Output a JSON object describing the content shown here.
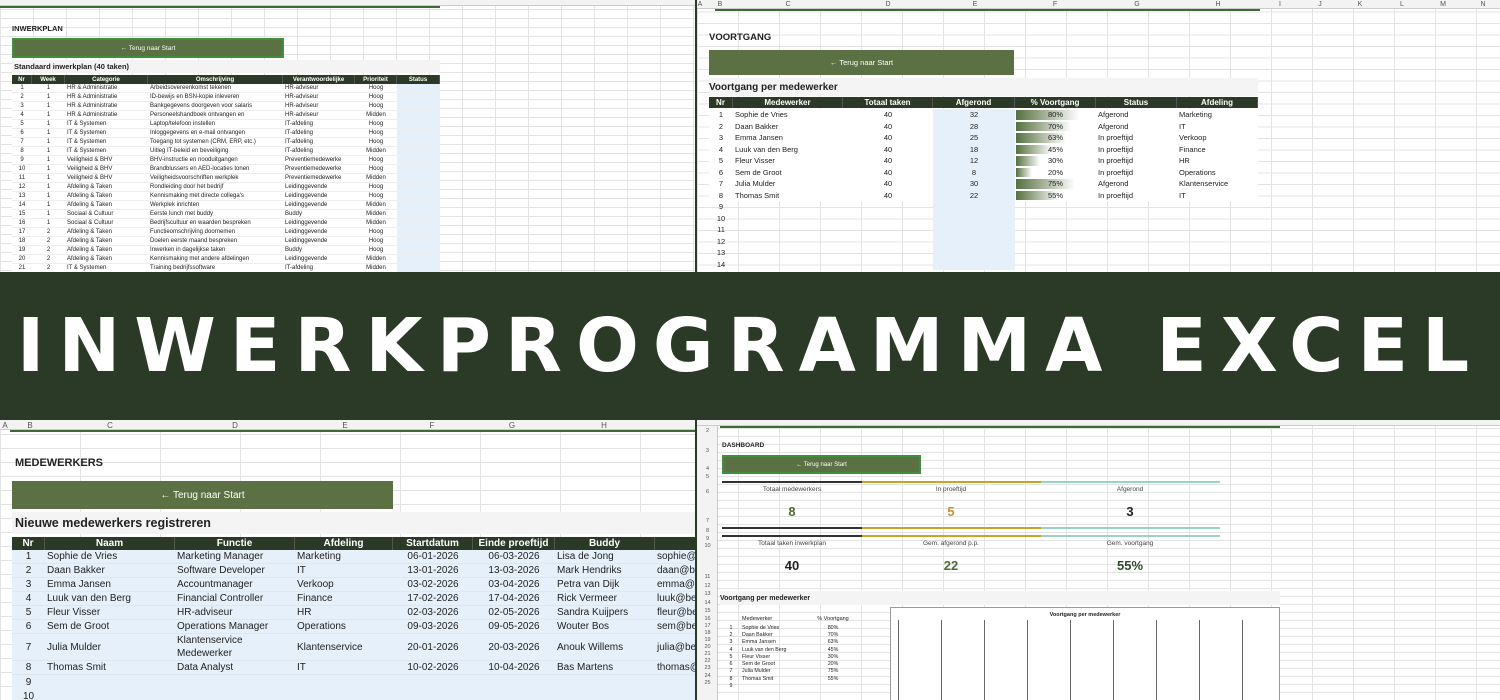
{
  "banner": {
    "title": "INWERKPROGRAMMA EXCEL"
  },
  "inwerkplan": {
    "title": "INWERKPLAN",
    "button": "← Terug naar Start",
    "subtitle": "Standaard inwerkplan (40 taken)",
    "headers": [
      "Nr",
      "Week",
      "Categorie",
      "Omschrijving",
      "Verantwoordelijke",
      "Prioriteit",
      "Status"
    ],
    "rows": [
      [
        1,
        1,
        "HR & Administratie",
        "Arbeidsovereenkomst tekenen",
        "HR-adviseur",
        "Hoog"
      ],
      [
        2,
        1,
        "HR & Administratie",
        "ID-bewijs en BSN-kopie inleveren",
        "HR-adviseur",
        "Hoog"
      ],
      [
        3,
        1,
        "HR & Administratie",
        "Bankgegevens doorgeven voor salaris",
        "HR-adviseur",
        "Hoog"
      ],
      [
        4,
        1,
        "HR & Administratie",
        "Personeelshandboek ontvangen en",
        "HR-adviseur",
        "Midden"
      ],
      [
        5,
        1,
        "IT & Systemen",
        "Laptop/telefoon instellen",
        "IT-afdeling",
        "Hoog"
      ],
      [
        6,
        1,
        "IT & Systemen",
        "Inloggegevens en e-mail ontvangen",
        "IT-afdeling",
        "Hoog"
      ],
      [
        7,
        1,
        "IT & Systemen",
        "Toegang tot systemen (CRM, ERP, etc.)",
        "IT-afdeling",
        "Hoog"
      ],
      [
        8,
        1,
        "IT & Systemen",
        "Uitleg IT-beleid en beveiliging",
        "IT-afdeling",
        "Midden"
      ],
      [
        9,
        1,
        "Veiligheid & BHV",
        "BHV-instructie en nooduitgangen",
        "Preventiemedewerke",
        "Hoog"
      ],
      [
        10,
        1,
        "Veiligheid & BHV",
        "Brandblussers en AED-locaties tonen",
        "Preventiemedewerke",
        "Hoog"
      ],
      [
        11,
        1,
        "Veiligheid & BHV",
        "Veiligheidsvoorschriften werkplek",
        "Preventiemedewerke",
        "Midden"
      ],
      [
        12,
        1,
        "Afdeling & Taken",
        "Rondleiding door het bedrijf",
        "Leidinggevende",
        "Hoog"
      ],
      [
        13,
        1,
        "Afdeling & Taken",
        "Kennismaking met directe collega's",
        "Leidinggevende",
        "Hoog"
      ],
      [
        14,
        1,
        "Afdeling & Taken",
        "Werkplek inrichten",
        "Leidinggevende",
        "Midden"
      ],
      [
        15,
        1,
        "Sociaal & Cultuur",
        "Eerste lunch met buddy",
        "Buddy",
        "Midden"
      ],
      [
        16,
        1,
        "Sociaal & Cultuur",
        "Bedrijfscultuur en waarden bespreken",
        "Leidinggevende",
        "Midden"
      ],
      [
        17,
        2,
        "Afdeling & Taken",
        "Functieomschrijving doornemen",
        "Leidinggevende",
        "Hoog"
      ],
      [
        18,
        2,
        "Afdeling & Taken",
        "Doelen eerste maand bespreken",
        "Leidinggevende",
        "Hoog"
      ],
      [
        19,
        2,
        "Afdeling & Taken",
        "Inwerken in dagelijkse taken",
        "Buddy",
        "Hoog"
      ],
      [
        20,
        2,
        "Afdeling & Taken",
        "Kennismaking met andere afdelingen",
        "Leidinggevende",
        "Midden"
      ],
      [
        21,
        2,
        "IT & Systemen",
        "Training bedrijfssoftware",
        "IT-afdeling",
        "Midden"
      ]
    ]
  },
  "voortgang": {
    "column_letters": [
      "A",
      "B",
      "C",
      "D",
      "E",
      "F",
      "G",
      "H",
      "I",
      "J",
      "K",
      "L",
      "M",
      "N"
    ],
    "title": "VOORTGANG",
    "button": "← Terug naar Start",
    "subtitle": "Voortgang per medewerker",
    "headers": [
      "Nr",
      "Medewerker",
      "Totaal taken",
      "Afgerond",
      "% Voortgang",
      "Status",
      "Afdeling"
    ],
    "rows": [
      {
        "nr": 1,
        "name": "Sophie de Vries",
        "total": 40,
        "done": 32,
        "progress": 80,
        "progress_label": "80%",
        "status": "Afgerond",
        "department": "Marketing"
      },
      {
        "nr": 2,
        "name": "Daan Bakker",
        "total": 40,
        "done": 28,
        "progress": 70,
        "progress_label": "70%",
        "status": "Afgerond",
        "department": "IT"
      },
      {
        "nr": 3,
        "name": "Emma Jansen",
        "total": 40,
        "done": 25,
        "progress": 63,
        "progress_label": "63%",
        "status": "In proeftijd",
        "department": "Verkoop"
      },
      {
        "nr": 4,
        "name": "Luuk van den Berg",
        "total": 40,
        "done": 18,
        "progress": 45,
        "progress_label": "45%",
        "status": "In proeftijd",
        "department": "Finance"
      },
      {
        "nr": 5,
        "name": "Fleur Visser",
        "total": 40,
        "done": 12,
        "progress": 30,
        "progress_label": "30%",
        "status": "In proeftijd",
        "department": "HR"
      },
      {
        "nr": 6,
        "name": "Sem de Groot",
        "total": 40,
        "done": 8,
        "progress": 20,
        "progress_label": "20%",
        "status": "In proeftijd",
        "department": "Operations"
      },
      {
        "nr": 7,
        "name": "Julia Mulder",
        "total": 40,
        "done": 30,
        "progress": 75,
        "progress_label": "75%",
        "status": "Afgerond",
        "department": "Klantenservice"
      },
      {
        "nr": 8,
        "name": "Thomas Smit",
        "total": 40,
        "done": 22,
        "progress": 55,
        "progress_label": "55%",
        "status": "In proeftijd",
        "department": "IT"
      }
    ],
    "empty_rows": [
      9,
      10,
      11,
      12,
      13,
      14
    ]
  },
  "medewerkers": {
    "column_letters": [
      "A",
      "B",
      "C",
      "D",
      "E",
      "F",
      "G",
      "H"
    ],
    "title": "MEDEWERKERS",
    "button": "← Terug naar Start",
    "subtitle": "Nieuwe medewerkers registreren",
    "headers": [
      "Nr",
      "Naam",
      "Functie",
      "Afdeling",
      "Startdatum",
      "Einde proeftijd",
      "Buddy"
    ],
    "rows": [
      [
        1,
        "Sophie de Vries",
        "Marketing Manager",
        "Marketing",
        "06-01-2026",
        "06-03-2026",
        "Lisa de Jong",
        "sophie@"
      ],
      [
        2,
        "Daan Bakker",
        "Software Developer",
        "IT",
        "13-01-2026",
        "13-03-2026",
        "Mark Hendriks",
        "daan@be"
      ],
      [
        3,
        "Emma Jansen",
        "Accountmanager",
        "Verkoop",
        "03-02-2026",
        "03-04-2026",
        "Petra van Dijk",
        "emma@b"
      ],
      [
        4,
        "Luuk van den Berg",
        "Financial Controller",
        "Finance",
        "17-02-2026",
        "17-04-2026",
        "Rick Vermeer",
        "luuk@be"
      ],
      [
        5,
        "Fleur Visser",
        "HR-adviseur",
        "HR",
        "02-03-2026",
        "02-05-2026",
        "Sandra Kuijpers",
        "fleur@be"
      ],
      [
        6,
        "Sem de Groot",
        "Operations Manager",
        "Operations",
        "09-03-2026",
        "09-05-2026",
        "Wouter Bos",
        "sem@be"
      ],
      [
        7,
        "Julia Mulder",
        "Klantenservice Medewerker",
        "Klantenservice",
        "20-01-2026",
        "20-03-2026",
        "Anouk Willems",
        "julia@be"
      ],
      [
        8,
        "Thomas Smit",
        "Data Analyst",
        "IT",
        "10-02-2026",
        "10-04-2026",
        "Bas Martens",
        "thomas@"
      ]
    ],
    "empty_rows": [
      9,
      10
    ]
  },
  "dashboard": {
    "title": "DASHBOARD",
    "button": "← Terug naar Start",
    "kpis": [
      {
        "label": "Totaal medewerkers",
        "value": 8,
        "color": "#4d6b34"
      },
      {
        "label": "In proeftijd",
        "value": 5,
        "color": "#c9912a"
      },
      {
        "label": "Afgerond",
        "value": 3,
        "color": "#222222"
      },
      {
        "label": "Totaal taken inwerkplan",
        "value": 40,
        "color": "#222222"
      },
      {
        "label": "Gem. afgerond p.p.",
        "value": 22,
        "color": "#4d6b34"
      },
      {
        "label": "Gem. voortgang",
        "value": "55%",
        "color": "#2f4a26"
      }
    ],
    "subtitle": "Voortgang per medewerker",
    "table_headers": [
      "Medewerker",
      "% Voortgang"
    ],
    "rows": [
      {
        "nr": 1,
        "name": "Sophie de Vries",
        "progress": "80%"
      },
      {
        "nr": 2,
        "name": "Daan Bakker",
        "progress": "70%"
      },
      {
        "nr": 3,
        "name": "Emma Jansen",
        "progress": "63%"
      },
      {
        "nr": 4,
        "name": "Luuk van den Berg",
        "progress": "45%"
      },
      {
        "nr": 5,
        "name": "Fleur Visser",
        "progress": "30%"
      },
      {
        "nr": 6,
        "name": "Sem de Groot",
        "progress": "20%"
      },
      {
        "nr": 7,
        "name": "Julia Mulder",
        "progress": "75%"
      },
      {
        "nr": 8,
        "name": "Thomas Smit",
        "progress": "55%"
      },
      {
        "nr": 9
      }
    ],
    "chart_title": "Voortgang per medewerker",
    "row_numbers": [
      2,
      3,
      4,
      5,
      6,
      7,
      8,
      9,
      10,
      11,
      12,
      13,
      14,
      15,
      16,
      17,
      18,
      19,
      20,
      21,
      22,
      23,
      24,
      25
    ]
  }
}
